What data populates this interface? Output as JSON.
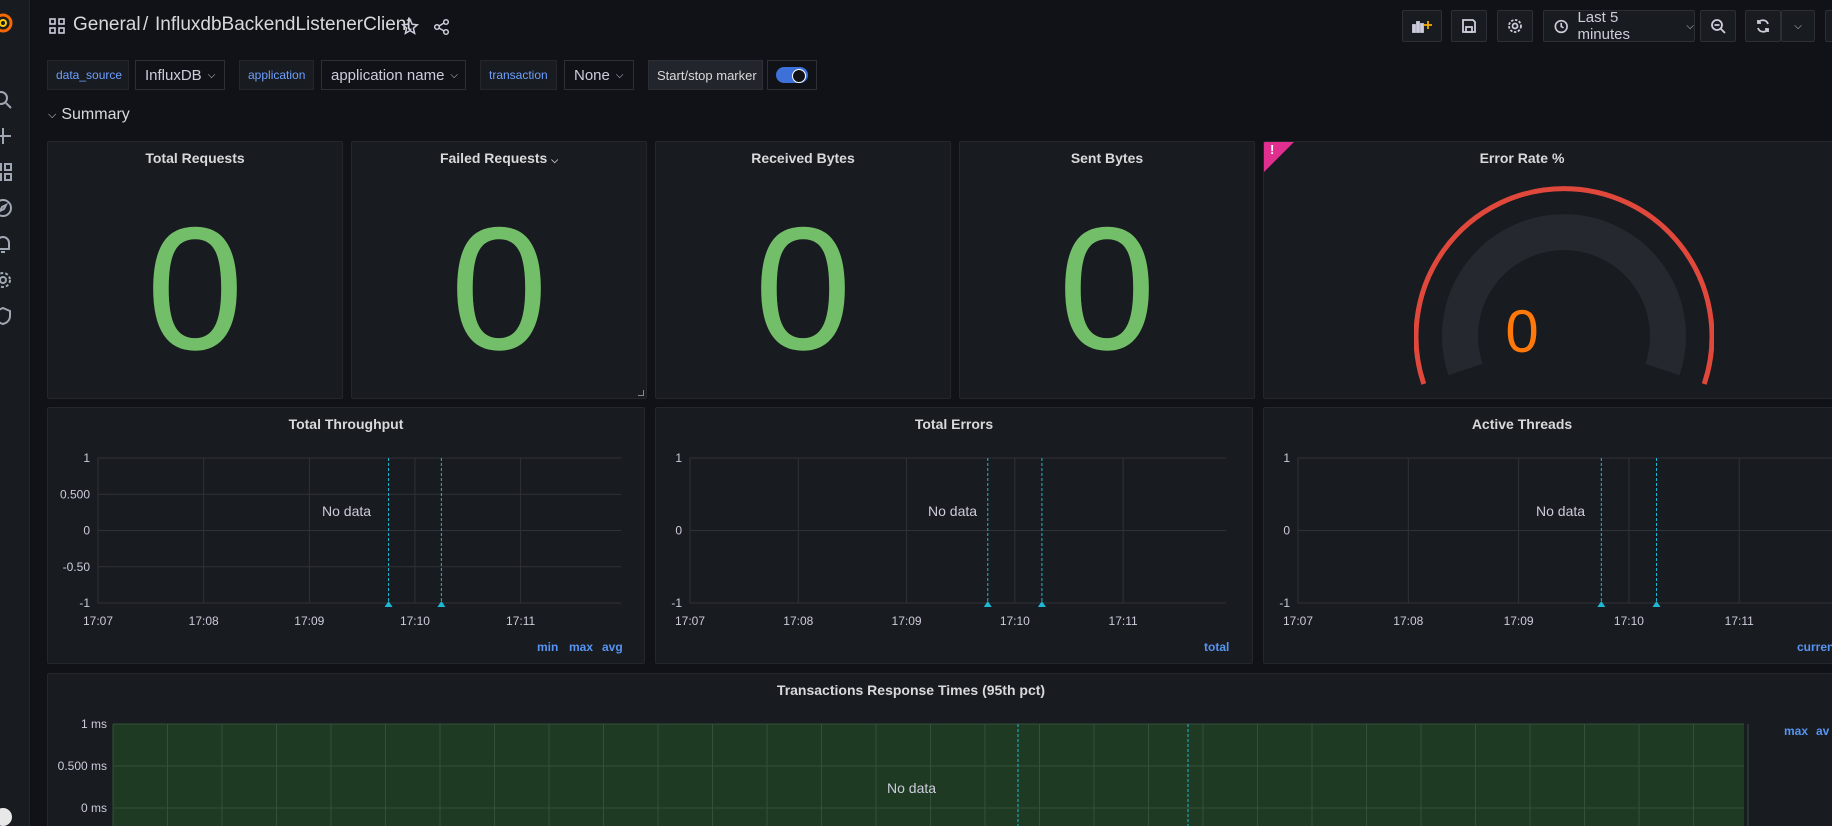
{
  "header": {
    "folder": "General",
    "separator": "/",
    "dashboard_title": "InfluxdbBackendListenerClient",
    "time_range": "Last 5 minutes"
  },
  "variables": [
    {
      "label": "data_source",
      "value": "InfluxDB"
    },
    {
      "label": "application",
      "value": "application name"
    },
    {
      "label": "transaction",
      "value": "None"
    }
  ],
  "marker": {
    "label": "Start/stop marker",
    "enabled": true
  },
  "row": {
    "title": "Summary"
  },
  "stats": [
    {
      "title": "Total Requests",
      "value": "0"
    },
    {
      "title": "Failed Requests",
      "value": "0"
    },
    {
      "title": "Received Bytes",
      "value": "0"
    },
    {
      "title": "Sent Bytes",
      "value": "0"
    }
  ],
  "gauge": {
    "title": "Error Rate %",
    "value": "0",
    "alert_mark": "!",
    "colors": {
      "arc": "#e0483c",
      "value": "#ff780a"
    }
  },
  "graphs": {
    "throughput": {
      "title": "Total Throughput",
      "no_data": "No data",
      "legend": [
        "min",
        "max",
        "avg"
      ]
    },
    "errors": {
      "title": "Total Errors",
      "no_data": "No data",
      "legend": [
        "total"
      ]
    },
    "threads": {
      "title": "Active Threads",
      "no_data": "No data",
      "legend": [
        "curren"
      ]
    },
    "response": {
      "title": "Transactions Response Times (95th pct)",
      "no_data": "No data",
      "legend": [
        "max",
        "av"
      ]
    }
  },
  "chart_data": [
    {
      "type": "line",
      "title": "Total Throughput",
      "x_ticks": [
        "17:07",
        "17:08",
        "17:09",
        "17:10",
        "17:11"
      ],
      "y_ticks": [
        "1",
        "0.500",
        "0",
        "-0.50",
        "-1"
      ],
      "ylim": [
        -1,
        1
      ],
      "series": [],
      "annotations_x": [
        "17:09:45",
        "17:10:15"
      ],
      "grid": true
    },
    {
      "type": "line",
      "title": "Total Errors",
      "x_ticks": [
        "17:07",
        "17:08",
        "17:09",
        "17:10",
        "17:11"
      ],
      "y_ticks": [
        "1",
        "0",
        "-1"
      ],
      "ylim": [
        -1,
        1
      ],
      "series": [],
      "annotations_x": [
        "17:09:45",
        "17:10:15"
      ],
      "grid": true
    },
    {
      "type": "line",
      "title": "Active Threads",
      "x_ticks": [
        "17:07",
        "17:08",
        "17:09",
        "17:10",
        "17:11"
      ],
      "y_ticks": [
        "1",
        "0",
        "-1"
      ],
      "ylim": [
        -1,
        1
      ],
      "series": [],
      "annotations_x": [
        "17:09:45",
        "17:10:15"
      ],
      "grid": true
    },
    {
      "type": "line",
      "title": "Transactions Response Times (95th pct)",
      "y_ticks": [
        "1 ms",
        "0.500 ms",
        "0 ms"
      ],
      "series": [],
      "grid": true
    }
  ],
  "colors": {
    "stat_value": "#73bf69",
    "annotation": "#1fb8d4",
    "legend": "#5794f2",
    "response_bg": "#1f3a22"
  }
}
